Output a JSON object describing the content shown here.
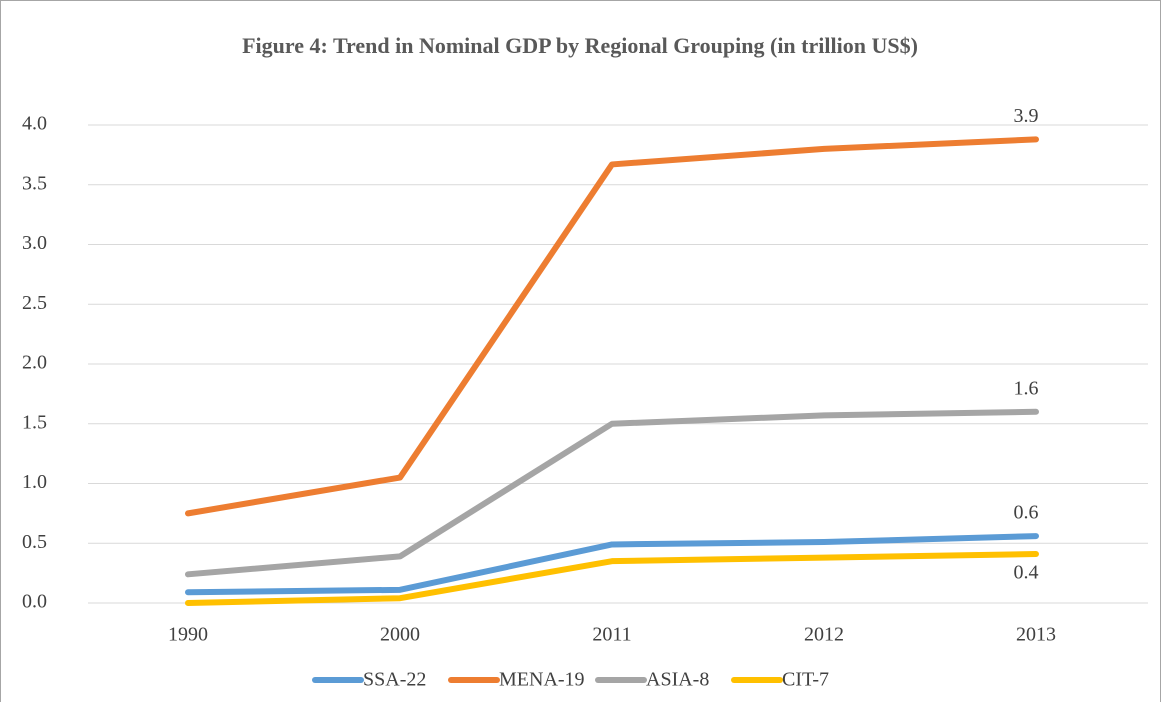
{
  "chart_data": {
    "type": "line",
    "title": "Figure 4: Trend in Nominal GDP by Regional Grouping (in trillion US$)",
    "categories": [
      "1990",
      "2000",
      "2011",
      "2012",
      "2013"
    ],
    "series": [
      {
        "name": "SSA-22",
        "color": "#5b9bd5",
        "values": [
          0.09,
          0.11,
          0.49,
          0.51,
          0.56
        ],
        "value_labels": [
          null,
          null,
          null,
          null,
          "0.6"
        ]
      },
      {
        "name": "MENA-19",
        "color": "#ed7d31",
        "values": [
          0.75,
          1.05,
          3.67,
          3.8,
          3.88
        ],
        "value_labels": [
          null,
          null,
          null,
          null,
          "3.9"
        ]
      },
      {
        "name": "ASIA-8",
        "color": "#a5a5a5",
        "values": [
          0.24,
          0.39,
          1.5,
          1.57,
          1.6
        ],
        "value_labels": [
          null,
          null,
          null,
          null,
          "1.6"
        ]
      },
      {
        "name": "CIT-7",
        "color": "#ffc000",
        "values": [
          0.0,
          0.04,
          0.35,
          0.38,
          0.41
        ],
        "value_labels": [
          null,
          null,
          null,
          null,
          "0.4"
        ]
      }
    ],
    "ylim": [
      0,
      4
    ],
    "yticks": [
      {
        "value": 0,
        "label": "0.0"
      },
      0.5,
      {
        "value": 1,
        "label": "1.0"
      },
      1.5,
      {
        "value": 2,
        "label": "2.0"
      },
      2.5,
      {
        "value": 3,
        "label": "3.0"
      },
      3.5,
      {
        "value": 4,
        "label": "4.0"
      }
    ],
    "grid": true,
    "legend": "bottom"
  }
}
